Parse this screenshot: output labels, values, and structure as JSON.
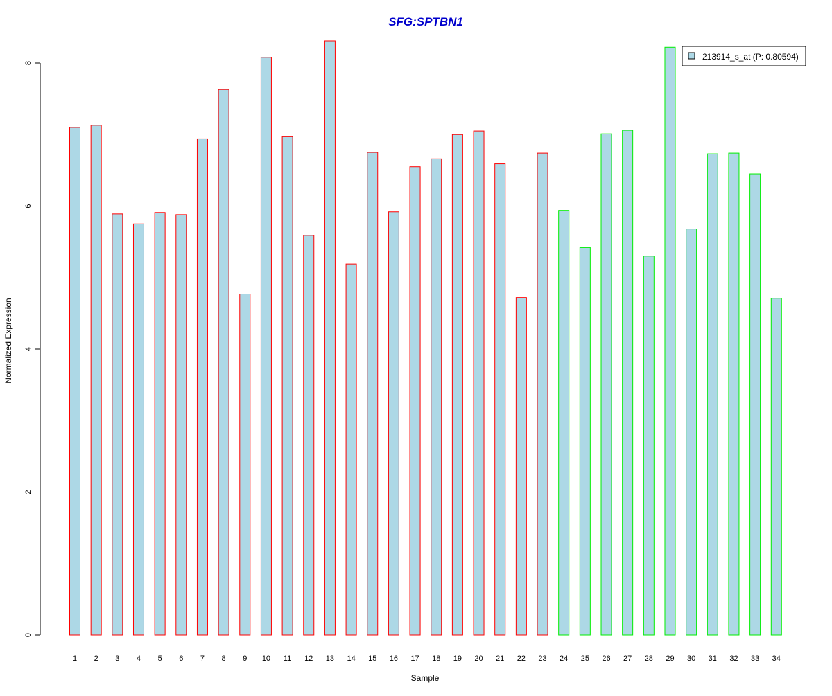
{
  "chart_data": {
    "type": "bar",
    "title": "SFG:SPTBN1",
    "xlabel": "Sample",
    "ylabel": "Normalized Expression",
    "ylim": [
      0,
      8.3
    ],
    "yticks": [
      0,
      2,
      4,
      6,
      8
    ],
    "categories": [
      "1",
      "2",
      "3",
      "4",
      "5",
      "6",
      "7",
      "8",
      "9",
      "10",
      "11",
      "12",
      "13",
      "14",
      "15",
      "16",
      "17",
      "18",
      "19",
      "20",
      "21",
      "22",
      "23",
      "24",
      "25",
      "26",
      "27",
      "28",
      "29",
      "30",
      "31",
      "32",
      "33",
      "34"
    ],
    "series": [
      {
        "name": "213914_s_at (P: 0.80594)",
        "values": [
          7.1,
          7.13,
          5.89,
          5.75,
          5.91,
          5.88,
          6.94,
          7.63,
          4.77,
          8.08,
          6.97,
          5.59,
          8.31,
          5.19,
          6.75,
          5.92,
          6.55,
          6.66,
          7.0,
          7.05,
          6.59,
          4.72,
          6.74,
          5.94,
          5.42,
          7.01,
          7.06,
          5.3,
          8.22,
          5.68,
          6.73,
          6.74,
          6.45,
          4.71
        ],
        "groups": [
          "group-a",
          "group-a",
          "group-a",
          "group-a",
          "group-a",
          "group-a",
          "group-a",
          "group-a",
          "group-a",
          "group-a",
          "group-a",
          "group-a",
          "group-a",
          "group-a",
          "group-a",
          "group-a",
          "group-a",
          "group-a",
          "group-a",
          "group-a",
          "group-a",
          "group-a",
          "group-a",
          "group-b",
          "group-b",
          "group-b",
          "group-b",
          "group-b",
          "group-b",
          "group-b",
          "group-b",
          "group-b",
          "group-b",
          "group-b"
        ]
      }
    ],
    "legend": {
      "position": "top-right",
      "label": "213914_s_at (P: 0.80594)"
    },
    "grid": false
  },
  "colors": {
    "bar_fill": "#add8e6",
    "group-a": "#ff0000",
    "group-b": "#00ee00",
    "title": "#0000cc",
    "axis": "#000000"
  }
}
